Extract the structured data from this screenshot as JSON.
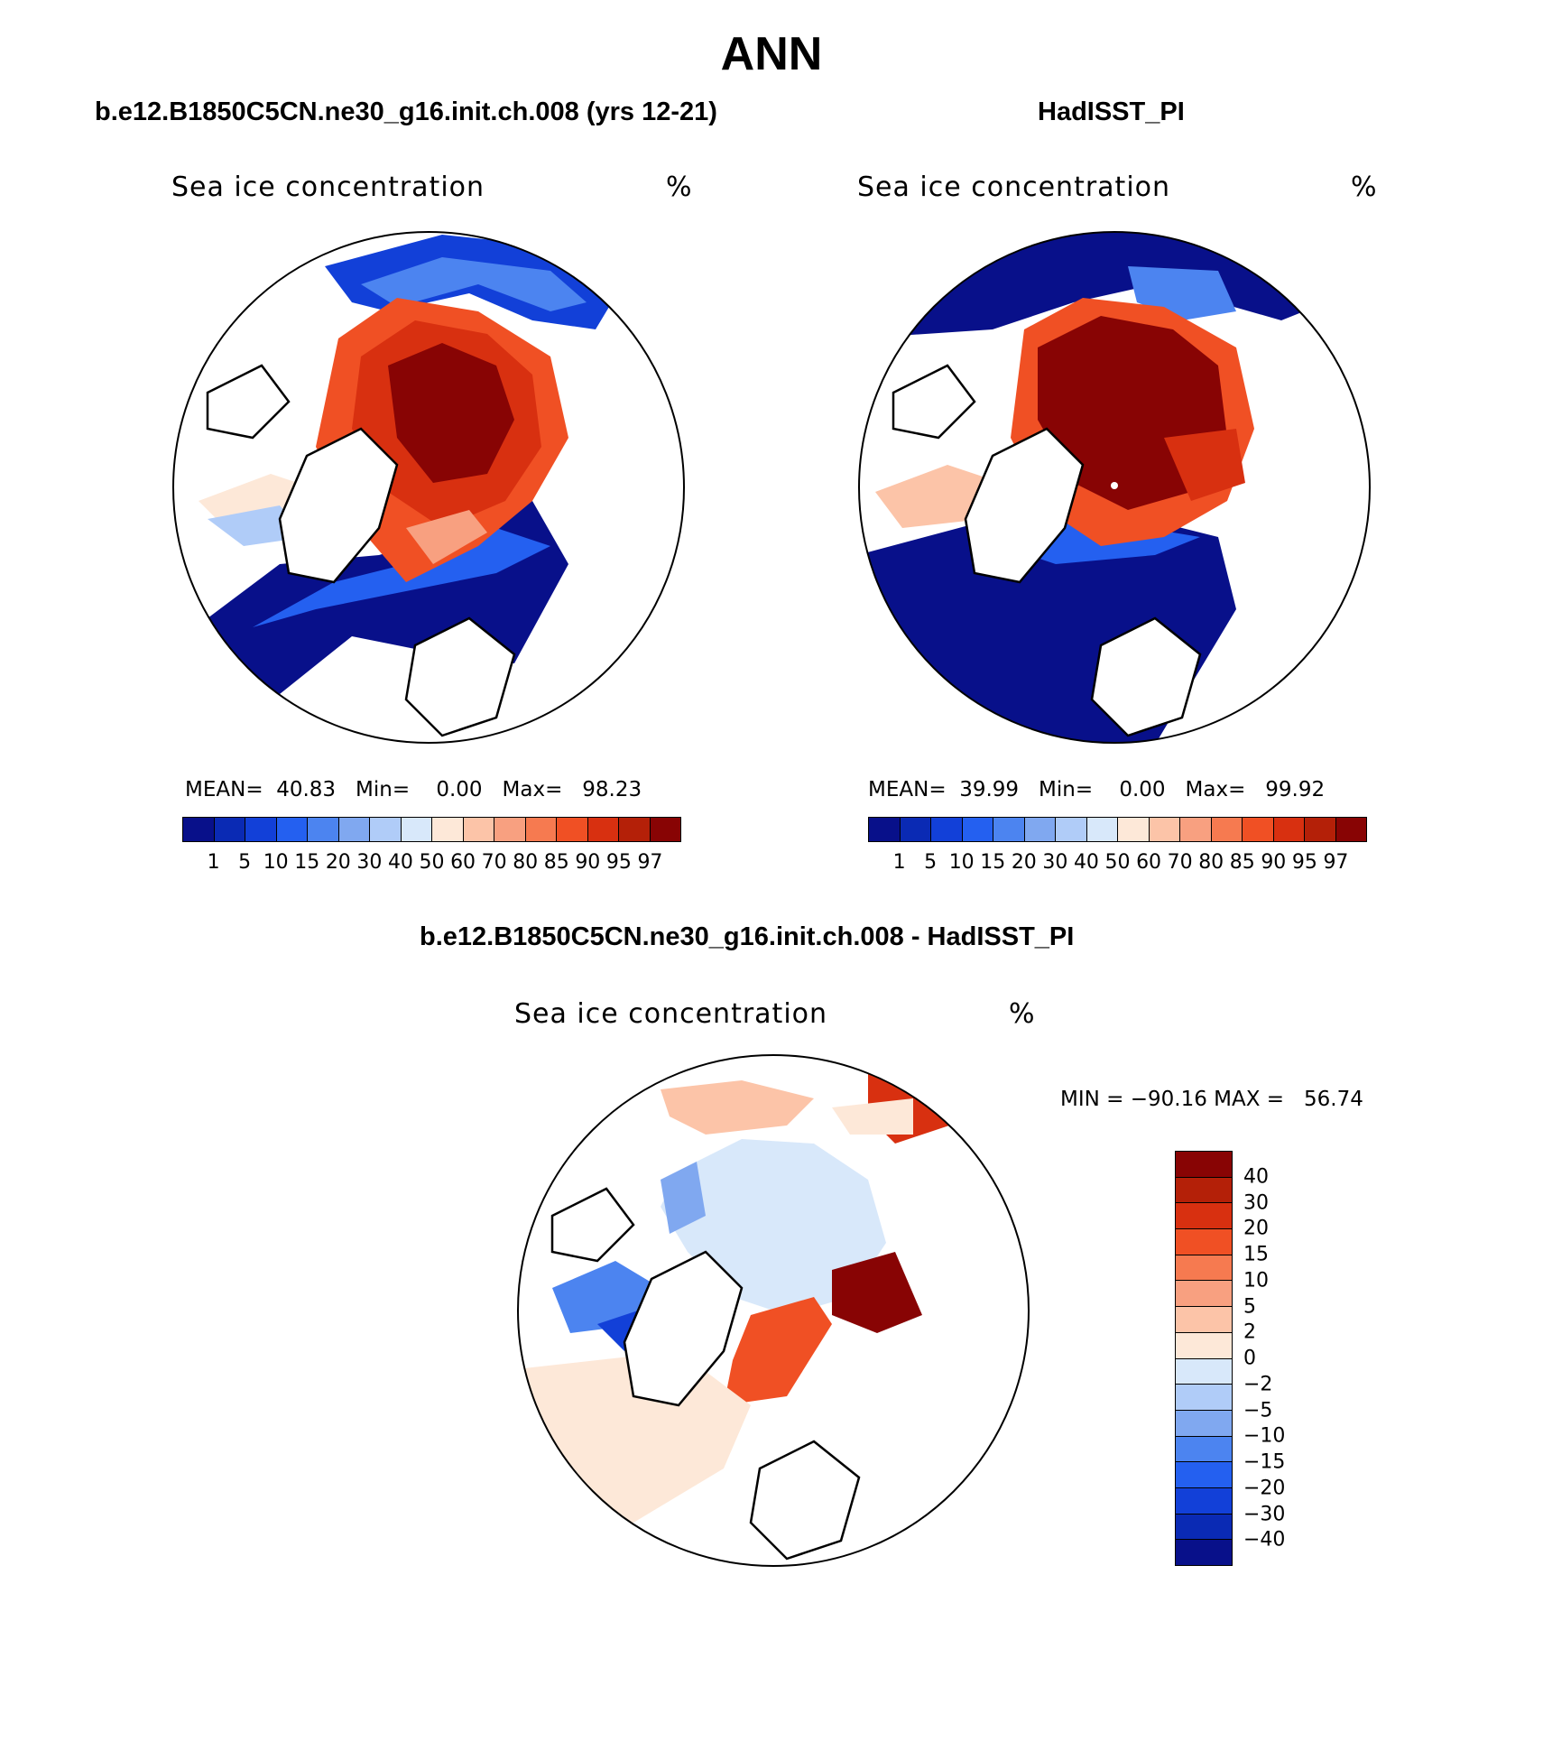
{
  "title": "ANN",
  "panels": [
    {
      "id": "model",
      "case_title": "b.e12.B1850C5CN.ne30_g16.init.ch.008 (yrs 12-21)",
      "variable": "Sea ice concentration",
      "units": "%",
      "stats": {
        "mean_label": "MEAN=",
        "mean": "40.83",
        "min_label": "Min=",
        "min": "0.00",
        "max_label": "Max=",
        "max": "98.23"
      }
    },
    {
      "id": "obs",
      "case_title": "HadISST_PI",
      "variable": "Sea ice concentration",
      "units": "%",
      "stats": {
        "mean_label": "MEAN=",
        "mean": "39.99",
        "min_label": "Min=",
        "min": "0.00",
        "max_label": "Max=",
        "max": "99.92"
      }
    },
    {
      "id": "diff",
      "case_title": "b.e12.B1850C5CN.ne30_g16.init.ch.008 - HadISST_PI",
      "variable": "Sea ice concentration",
      "units": "%",
      "stats_text": "MIN = −90.16 MAX =   56.74"
    }
  ],
  "colorbar_abs": {
    "levels": [
      "1",
      "5",
      "10",
      "15",
      "20",
      "30",
      "40",
      "50",
      "60",
      "70",
      "80",
      "85",
      "90",
      "95",
      "97"
    ],
    "colors": [
      "#08108a",
      "#0a2ab4",
      "#1240d8",
      "#2460f0",
      "#4c84f0",
      "#80a8f0",
      "#b0ccf8",
      "#d8e8fa",
      "#fde8d8",
      "#fcc4a8",
      "#f8a080",
      "#f67a50",
      "#f05024",
      "#d83010",
      "#b42008",
      "#880404"
    ]
  },
  "colorbar_diff": {
    "levels": [
      "40",
      "30",
      "20",
      "15",
      "10",
      "5",
      "2",
      "0",
      "−2",
      "−5",
      "−10",
      "−15",
      "−20",
      "−30",
      "−40"
    ],
    "colors": [
      "#880404",
      "#b42008",
      "#d83010",
      "#f05024",
      "#f67a50",
      "#f8a080",
      "#fcc4a8",
      "#fde8d8",
      "#d8e8fa",
      "#b0ccf8",
      "#80a8f0",
      "#4c84f0",
      "#2460f0",
      "#1240d8",
      "#0a2ab4",
      "#08108a"
    ]
  }
}
